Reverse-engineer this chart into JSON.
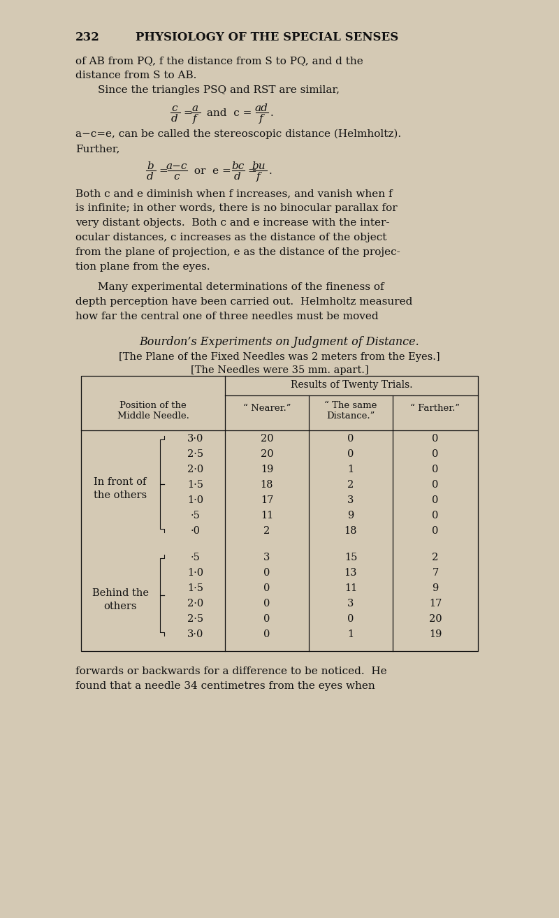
{
  "bg_color": "#d4c9b4",
  "text_color": "#111111",
  "page_number": "232",
  "page_header": "PHYSIOLOGY OF THE SPECIAL SENSES",
  "para1_lines": [
    "of AB from PQ, f the distance from S to PQ, and d the",
    "distance from S to AB."
  ],
  "para2": "Since the triangles PSQ and RST are similar,",
  "para3_lines": [
    "a−c=e, can be called the stereoscopic distance (Helmholtz).",
    "Further,"
  ],
  "para4_lines": [
    "Both c and e diminish when f increases, and vanish when f",
    "is infinite; in other words, there is no binocular parallax for",
    "very distant objects.  Both c and e increase with the inter-",
    "ocular distances, c increases as the distance of the object",
    "from the plane of projection, e as the distance of the projec-",
    "tion plane from the eyes."
  ],
  "para5_lines": [
    "Many experimental determinations of the fineness of",
    "depth perception have been carried out.  Helmholtz measured",
    "how far the central one of three needles must be moved"
  ],
  "table_title": "Bourdon’s Experiments on Judgment of Distance.",
  "table_sub1": "[The Plane of the Fixed Needles was 2 meters from the Eyes.]",
  "table_sub2": "[The Needles were 35 mm. apart.]",
  "col_header_pos": "Position of the\nMiddle Needle.",
  "col_results_header": "Results of Twenty Trials.",
  "col_nearer": "“ Nearer.”",
  "col_same": "“ The same\nDistance.”",
  "col_farther": "“ Farther.”",
  "group1_label_line1": "In front of",
  "group1_label_line2": "the others",
  "group1_distances": [
    "3·0",
    "2·5",
    "2·0",
    "1·5",
    "1·0",
    "·5",
    "·0"
  ],
  "group1_nearer": [
    20,
    20,
    19,
    18,
    17,
    11,
    2
  ],
  "group1_same": [
    0,
    0,
    1,
    2,
    3,
    9,
    18
  ],
  "group1_farther": [
    0,
    0,
    0,
    0,
    0,
    0,
    0
  ],
  "group2_label_line1": "Behind the",
  "group2_label_line2": "others",
  "group2_distances": [
    "·5",
    "1·0",
    "1·5",
    "2·0",
    "2·5",
    "3·0"
  ],
  "group2_nearer": [
    3,
    0,
    0,
    0,
    0,
    0
  ],
  "group2_same": [
    15,
    13,
    11,
    3,
    0,
    1
  ],
  "group2_farther": [
    2,
    7,
    9,
    17,
    20,
    19
  ],
  "end_line1": "forwards or backwards for a difference to be noticed.  He",
  "end_line2": "found that a needle 34 centimetres from the eyes when"
}
